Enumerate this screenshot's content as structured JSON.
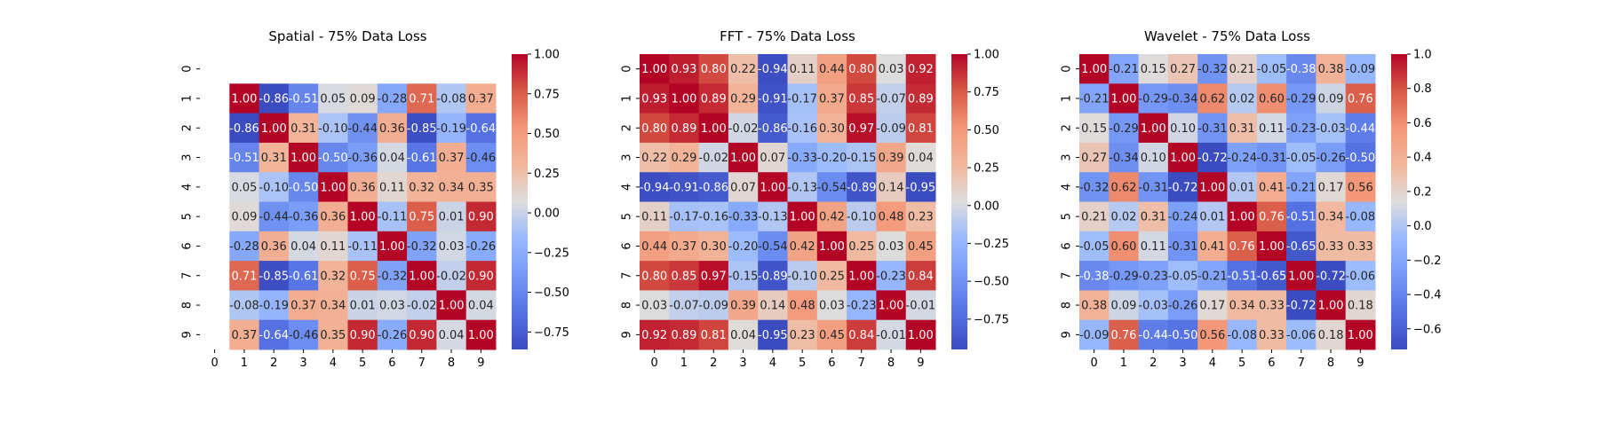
{
  "colormap": "coolwarm",
  "colors": {
    "low": "#3b4cc0",
    "mid": "#dddddd",
    "high": "#b40426"
  },
  "chart_data": [
    {
      "type": "heatmap",
      "title": "Spatial - 75% Data Loss",
      "x_tick_labels": [
        "0",
        "1",
        "2",
        "3",
        "4",
        "5",
        "6",
        "7",
        "8",
        "9"
      ],
      "y_tick_labels": [
        "0",
        "1",
        "2",
        "3",
        "4",
        "5",
        "6",
        "7",
        "8",
        "9"
      ],
      "vmin": -0.86,
      "vmax": 1.0,
      "colorbar_ticks": [
        1.0,
        0.75,
        0.5,
        0.25,
        0.0,
        -0.25,
        -0.5,
        -0.75
      ],
      "colorbar_tick_labels": [
        "1.00",
        "0.75",
        "0.50",
        "0.25",
        "0.00",
        "−0.25",
        "−0.50",
        "−0.75"
      ],
      "matrix": [
        [
          null,
          null,
          null,
          null,
          null,
          null,
          null,
          null,
          null,
          null
        ],
        [
          null,
          1.0,
          -0.86,
          -0.51,
          0.05,
          0.09,
          -0.28,
          0.71,
          -0.08,
          0.37
        ],
        [
          null,
          -0.86,
          1.0,
          0.31,
          -0.1,
          -0.44,
          0.36,
          -0.85,
          -0.19,
          -0.64
        ],
        [
          null,
          -0.51,
          0.31,
          1.0,
          -0.5,
          -0.36,
          0.04,
          -0.61,
          0.37,
          -0.46
        ],
        [
          null,
          0.05,
          -0.1,
          -0.5,
          1.0,
          0.36,
          0.11,
          0.32,
          0.34,
          0.35
        ],
        [
          null,
          0.09,
          -0.44,
          -0.36,
          0.36,
          1.0,
          -0.11,
          0.75,
          0.01,
          0.9
        ],
        [
          null,
          -0.28,
          0.36,
          0.04,
          0.11,
          -0.11,
          1.0,
          -0.32,
          0.03,
          -0.26
        ],
        [
          null,
          0.71,
          -0.85,
          -0.61,
          0.32,
          0.75,
          -0.32,
          1.0,
          -0.02,
          0.9
        ],
        [
          null,
          -0.08,
          -0.19,
          0.37,
          0.34,
          0.01,
          0.03,
          -0.02,
          1.0,
          0.04
        ],
        [
          null,
          0.37,
          -0.64,
          -0.46,
          0.35,
          0.9,
          -0.26,
          0.9,
          0.04,
          1.0
        ]
      ]
    },
    {
      "type": "heatmap",
      "title": "FFT - 75% Data Loss",
      "x_tick_labels": [
        "0",
        "1",
        "2",
        "3",
        "4",
        "5",
        "6",
        "7",
        "8",
        "9"
      ],
      "y_tick_labels": [
        "0",
        "1",
        "2",
        "3",
        "4",
        "5",
        "6",
        "7",
        "8",
        "9"
      ],
      "vmin": -0.95,
      "vmax": 1.0,
      "colorbar_ticks": [
        1.0,
        0.75,
        0.5,
        0.25,
        0.0,
        -0.25,
        -0.5,
        -0.75
      ],
      "colorbar_tick_labels": [
        "1.00",
        "0.75",
        "0.50",
        "0.25",
        "0.00",
        "−0.25",
        "−0.50",
        "−0.75"
      ],
      "matrix": [
        [
          1.0,
          0.93,
          0.8,
          0.22,
          -0.94,
          0.11,
          0.44,
          0.8,
          0.03,
          0.92
        ],
        [
          0.93,
          1.0,
          0.89,
          0.29,
          -0.91,
          -0.17,
          0.37,
          0.85,
          -0.07,
          0.89
        ],
        [
          0.8,
          0.89,
          1.0,
          -0.02,
          -0.86,
          -0.16,
          0.3,
          0.97,
          -0.09,
          0.81
        ],
        [
          0.22,
          0.29,
          -0.02,
          1.0,
          0.07,
          -0.33,
          -0.2,
          -0.15,
          0.39,
          0.04
        ],
        [
          -0.94,
          -0.91,
          -0.86,
          0.07,
          1.0,
          -0.13,
          -0.54,
          -0.89,
          0.14,
          -0.95
        ],
        [
          0.11,
          -0.17,
          -0.16,
          -0.33,
          -0.13,
          1.0,
          0.42,
          -0.1,
          0.48,
          0.23
        ],
        [
          0.44,
          0.37,
          0.3,
          -0.2,
          -0.54,
          0.42,
          1.0,
          0.25,
          0.03,
          0.45
        ],
        [
          0.8,
          0.85,
          0.97,
          -0.15,
          -0.89,
          -0.1,
          0.25,
          1.0,
          -0.23,
          0.84
        ],
        [
          0.03,
          -0.07,
          -0.09,
          0.39,
          0.14,
          0.48,
          0.03,
          -0.23,
          1.0,
          -0.01
        ],
        [
          0.92,
          0.89,
          0.81,
          0.04,
          -0.95,
          0.23,
          0.45,
          0.84,
          -0.01,
          1.0
        ]
      ]
    },
    {
      "type": "heatmap",
      "title": "Wavelet - 75% Data Loss",
      "x_tick_labels": [
        "0",
        "1",
        "2",
        "3",
        "4",
        "5",
        "6",
        "7",
        "8",
        "9"
      ],
      "y_tick_labels": [
        "0",
        "1",
        "2",
        "3",
        "4",
        "5",
        "6",
        "7",
        "8",
        "9"
      ],
      "vmin": -0.72,
      "vmax": 1.0,
      "colorbar_ticks": [
        1.0,
        0.8,
        0.6,
        0.4,
        0.2,
        0.0,
        -0.2,
        -0.4,
        -0.6
      ],
      "colorbar_tick_labels": [
        "1.0",
        "0.8",
        "0.6",
        "0.4",
        "0.2",
        "0.0",
        "−0.2",
        "−0.4",
        "−0.6"
      ],
      "matrix": [
        [
          1.0,
          -0.21,
          0.15,
          0.27,
          -0.32,
          0.21,
          -0.05,
          -0.38,
          0.38,
          -0.09
        ],
        [
          -0.21,
          1.0,
          -0.29,
          -0.34,
          0.62,
          0.02,
          0.6,
          -0.29,
          0.09,
          0.76
        ],
        [
          0.15,
          -0.29,
          1.0,
          0.1,
          -0.31,
          0.31,
          0.11,
          -0.23,
          -0.03,
          -0.44
        ],
        [
          0.27,
          -0.34,
          0.1,
          1.0,
          -0.72,
          -0.24,
          -0.31,
          -0.05,
          -0.26,
          -0.5
        ],
        [
          -0.32,
          0.62,
          -0.31,
          -0.72,
          1.0,
          0.01,
          0.41,
          -0.21,
          0.17,
          0.56
        ],
        [
          0.21,
          0.02,
          0.31,
          -0.24,
          0.01,
          1.0,
          0.76,
          -0.51,
          0.34,
          -0.08
        ],
        [
          -0.05,
          0.6,
          0.11,
          -0.31,
          0.41,
          0.76,
          1.0,
          -0.65,
          0.33,
          0.33
        ],
        [
          -0.38,
          -0.29,
          -0.23,
          -0.05,
          -0.21,
          -0.51,
          -0.65,
          1.0,
          -0.72,
          -0.06
        ],
        [
          0.38,
          0.09,
          -0.03,
          -0.26,
          0.17,
          0.34,
          0.33,
          -0.72,
          1.0,
          0.18
        ],
        [
          -0.09,
          0.76,
          -0.44,
          -0.5,
          0.56,
          -0.08,
          0.33,
          -0.06,
          0.18,
          1.0
        ]
      ]
    }
  ]
}
